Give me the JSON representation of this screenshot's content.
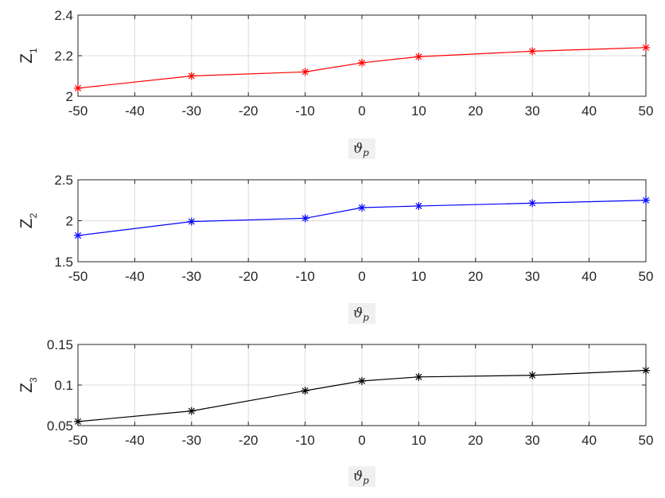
{
  "chart_data": [
    {
      "type": "line",
      "ylabel": "Z",
      "ylabel_sub": "1",
      "xlabel": "ϑ",
      "xlabel_sub": "p",
      "xlim": [
        -50,
        50
      ],
      "ylim": [
        2,
        2.4
      ],
      "xticks": [
        -50,
        -40,
        -30,
        -20,
        -10,
        0,
        10,
        20,
        30,
        40,
        50
      ],
      "yticks": [
        2,
        2.2,
        2.4
      ],
      "ytick_labels": [
        "2",
        "2.2",
        "2.4"
      ],
      "grid": true,
      "series": [
        {
          "color": "#ff0000",
          "marker": "asterisk",
          "x": [
            -50,
            -30,
            -10,
            0,
            10,
            30,
            50
          ],
          "y": [
            2.04,
            2.1,
            2.12,
            2.165,
            2.195,
            2.222,
            2.24
          ]
        }
      ]
    },
    {
      "type": "line",
      "ylabel": "Z",
      "ylabel_sub": "2",
      "xlabel": "ϑ",
      "xlabel_sub": "p",
      "xlim": [
        -50,
        50
      ],
      "ylim": [
        1.5,
        2.5
      ],
      "xticks": [
        -50,
        -40,
        -30,
        -20,
        -10,
        0,
        10,
        20,
        30,
        40,
        50
      ],
      "yticks": [
        1.5,
        2,
        2.5
      ],
      "ytick_labels": [
        "1.5",
        "2",
        "2.5"
      ],
      "grid": true,
      "series": [
        {
          "color": "#0000ff",
          "marker": "asterisk",
          "x": [
            -50,
            -30,
            -10,
            0,
            10,
            30,
            50
          ],
          "y": [
            1.82,
            1.99,
            2.03,
            2.16,
            2.18,
            2.215,
            2.25
          ]
        }
      ]
    },
    {
      "type": "line",
      "ylabel": "Z",
      "ylabel_sub": "3",
      "xlabel": "ϑ",
      "xlabel_sub": "p",
      "xlim": [
        -50,
        50
      ],
      "ylim": [
        0.05,
        0.15
      ],
      "xticks": [
        -50,
        -40,
        -30,
        -20,
        -10,
        0,
        10,
        20,
        30,
        40,
        50
      ],
      "yticks": [
        0.05,
        0.1,
        0.15
      ],
      "ytick_labels": [
        "0.05",
        "0.1",
        "0.15"
      ],
      "grid": true,
      "series": [
        {
          "color": "#000000",
          "marker": "asterisk",
          "x": [
            -50,
            -30,
            -10,
            0,
            10,
            30,
            50
          ],
          "y": [
            0.055,
            0.068,
            0.093,
            0.105,
            0.11,
            0.112,
            0.118
          ]
        }
      ]
    }
  ]
}
